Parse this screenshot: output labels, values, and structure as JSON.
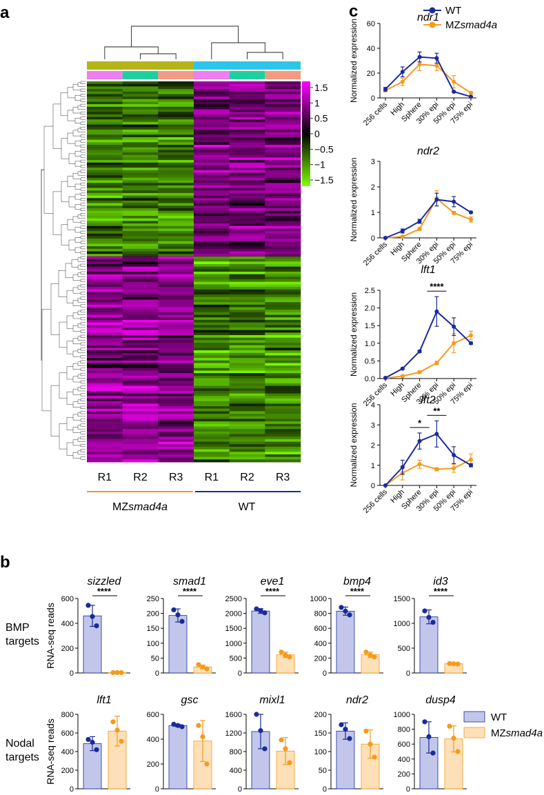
{
  "panel_labels": {
    "a": "a",
    "b": "b",
    "c": "c"
  },
  "colors": {
    "wt": "#1a2a9a",
    "mz": "#f59a1a",
    "wt_fill": "#c1c6ea",
    "mz_fill": "#fde0b8",
    "group_mz": "#b5b41a",
    "group_wt": "#2ec6e8",
    "rep1": "#f07ef0",
    "rep2": "#1ed0a0",
    "rep3": "#f59a82"
  },
  "legend": {
    "wt": "WT",
    "mz_prefix": "MZ",
    "mz_italic": "smad4a"
  },
  "heatmap": {
    "colorbar_ticks": [
      "1.5",
      "1",
      "0.5",
      "0",
      "−0.5",
      "−1",
      "−1.5"
    ],
    "columns": [
      "R1",
      "R2",
      "R3",
      "R1",
      "R2",
      "R3"
    ],
    "group_mz_prefix": "MZ",
    "group_mz_italic": "smad4a",
    "group_wt": "WT"
  },
  "panel_b": {
    "ylabel": "RNA-seq reads",
    "row_bmp_label": [
      "BMP",
      "targets"
    ],
    "row_nodal_label": [
      "Nodal",
      "targets"
    ]
  },
  "panel_c": {
    "ylabel": "Normalized expression"
  },
  "chart_data": [
    {
      "type": "line",
      "panel": "c",
      "gene": "ndr1",
      "x": [
        "256 cells",
        "High",
        "Sphere",
        "30% epi",
        "50% epi",
        "75% epi"
      ],
      "ylim": [
        0,
        60
      ],
      "yticks": [
        "0",
        "20",
        "40",
        "60"
      ],
      "series": [
        {
          "name": "WT",
          "values": [
            7,
            21,
            33,
            32,
            5,
            1
          ],
          "errors": [
            1.5,
            4,
            4,
            4,
            0.5,
            0.3
          ]
        },
        {
          "name": "MZsmad4a",
          "values": [
            6,
            13,
            27,
            26,
            13,
            4
          ],
          "errors": [
            1,
            3,
            5,
            4,
            5,
            1
          ]
        }
      ],
      "significance": []
    },
    {
      "type": "line",
      "panel": "c",
      "gene": "ndr2",
      "x": [
        "256 cells",
        "High",
        "Sphere",
        "30% epi",
        "50% epi",
        "75% epi"
      ],
      "ylim": [
        0,
        3
      ],
      "yticks": [
        "0",
        "1",
        "2",
        "3"
      ],
      "series": [
        {
          "name": "WT",
          "values": [
            0,
            0.27,
            0.65,
            1.5,
            1.42,
            1.0
          ],
          "errors": [
            0.02,
            0.08,
            0.08,
            0.25,
            0.2,
            0.03
          ]
        },
        {
          "name": "MZsmad4a",
          "values": [
            0,
            0.05,
            0.35,
            1.55,
            0.98,
            0.72
          ],
          "errors": [
            0.02,
            0.03,
            0.06,
            0.3,
            0.06,
            0.1
          ]
        }
      ],
      "significance": []
    },
    {
      "type": "line",
      "panel": "c",
      "gene": "lft1",
      "x": [
        "256 cells",
        "High",
        "Sphere",
        "30% epi",
        "50% epi",
        "75% epi"
      ],
      "ylim": [
        0,
        2.5
      ],
      "yticks": [
        "0.0",
        "0.5",
        "1.0",
        "1.5",
        "2.0",
        "2.5"
      ],
      "series": [
        {
          "name": "WT",
          "values": [
            0.02,
            0.28,
            0.77,
            1.9,
            1.47,
            1.0
          ],
          "errors": [
            0.01,
            0.02,
            0.03,
            0.42,
            0.25,
            0.03
          ]
        },
        {
          "name": "MZsmad4a",
          "values": [
            0.01,
            0.07,
            0.18,
            0.44,
            1.0,
            1.22
          ],
          "errors": [
            0.01,
            0.02,
            0.04,
            0.05,
            0.27,
            0.12
          ]
        }
      ],
      "significance": [
        {
          "from": 3,
          "to": 3,
          "label": "****"
        }
      ]
    },
    {
      "type": "line",
      "panel": "c",
      "gene": "lft2",
      "x": [
        "256 cells",
        "High",
        "Sphere",
        "30% epi",
        "50% epi",
        "75% epi"
      ],
      "ylim": [
        0,
        4
      ],
      "yticks": [
        "0",
        "1",
        "2",
        "3",
        "4"
      ],
      "series": [
        {
          "name": "WT",
          "values": [
            0,
            0.9,
            2.2,
            2.55,
            1.5,
            1.0
          ],
          "errors": [
            0.02,
            0.35,
            0.4,
            0.65,
            0.42,
            0.08
          ]
        },
        {
          "name": "MZsmad4a",
          "values": [
            0,
            0.62,
            1.05,
            0.8,
            0.85,
            1.28
          ],
          "errors": [
            0.02,
            0.35,
            0.2,
            0.08,
            0.2,
            0.28
          ]
        }
      ],
      "significance": [
        {
          "from": 2,
          "to": 2,
          "label": "*"
        },
        {
          "from": 3,
          "to": 3,
          "label": "**"
        }
      ]
    },
    {
      "type": "bar",
      "panel": "b",
      "row": "BMP",
      "gene": "sizzled",
      "categories": [
        "WT",
        "MZsmad4a"
      ],
      "values": [
        460,
        3
      ],
      "errors": [
        85,
        1
      ],
      "points": [
        [
          545,
          455,
          380
        ],
        [
          3,
          3,
          3
        ]
      ],
      "ylim": [
        0,
        600
      ],
      "yticks": [
        "0",
        "200",
        "400",
        "600"
      ],
      "significance": "****"
    },
    {
      "type": "bar",
      "panel": "b",
      "row": "BMP",
      "gene": "smad1",
      "categories": [
        "WT",
        "MZsmad4a"
      ],
      "values": [
        193,
        20
      ],
      "errors": [
        22,
        6
      ],
      "points": [
        [
          212,
          195,
          173
        ],
        [
          28,
          20,
          14
        ]
      ],
      "ylim": [
        0,
        250
      ],
      "yticks": [
        "0",
        "50",
        "100",
        "150",
        "200",
        "250"
      ],
      "significance": "****"
    },
    {
      "type": "bar",
      "panel": "b",
      "row": "BMP",
      "gene": "eve1",
      "categories": [
        "WT",
        "MZsmad4a"
      ],
      "values": [
        2080,
        610
      ],
      "errors": [
        80,
        90
      ],
      "points": [
        [
          2150,
          2090,
          2020
        ],
        [
          700,
          600,
          540
        ]
      ],
      "ylim": [
        0,
        2500
      ],
      "yticks": [
        "0",
        "500",
        "1000",
        "1500",
        "2000",
        "2500"
      ],
      "significance": "****"
    },
    {
      "type": "bar",
      "panel": "b",
      "row": "BMP",
      "gene": "bmp4",
      "categories": [
        "WT",
        "MZsmad4a"
      ],
      "values": [
        830,
        245
      ],
      "errors": [
        55,
        35
      ],
      "points": [
        [
          880,
          830,
          780
        ],
        [
          280,
          240,
          215
        ]
      ],
      "ylim": [
        0,
        1000
      ],
      "yticks": [
        "0",
        "200",
        "400",
        "600",
        "800",
        "1000"
      ],
      "significance": "****"
    },
    {
      "type": "bar",
      "panel": "b",
      "row": "BMP",
      "gene": "id3",
      "categories": [
        "WT",
        "MZsmad4a"
      ],
      "values": [
        1130,
        185
      ],
      "errors": [
        140,
        10
      ],
      "points": [
        [
          1250,
          1120,
          1020
        ],
        [
          190,
          185,
          180
        ]
      ],
      "ylim": [
        0,
        1500
      ],
      "yticks": [
        "0",
        "500",
        "1000",
        "1500"
      ],
      "significance": "****"
    },
    {
      "type": "bar",
      "panel": "b",
      "row": "Nodal",
      "gene": "lft1",
      "categories": [
        "WT",
        "MZsmad4a"
      ],
      "values": [
        485,
        620
      ],
      "errors": [
        75,
        160
      ],
      "points": [
        [
          530,
          500,
          420
        ],
        [
          720,
          630,
          510
        ]
      ],
      "ylim": [
        0,
        800
      ],
      "yticks": [
        "0",
        "200",
        "400",
        "600",
        "800"
      ],
      "significance": ""
    },
    {
      "type": "bar",
      "panel": "b",
      "row": "Nodal",
      "gene": "gsc",
      "categories": [
        "WT",
        "MZsmad4a"
      ],
      "values": [
        510,
        385
      ],
      "errors": [
        10,
        165
      ],
      "points": [
        [
          520,
          510,
          500
        ],
        [
          510,
          420,
          200
        ]
      ],
      "ylim": [
        0,
        600
      ],
      "yticks": [
        "0",
        "200",
        "400",
        "600"
      ],
      "significance": ""
    },
    {
      "type": "bar",
      "panel": "b",
      "row": "Nodal",
      "gene": "mixl1",
      "categories": [
        "WT",
        "MZsmad4a"
      ],
      "values": [
        1230,
        810
      ],
      "errors": [
        370,
        290
      ],
      "points": [
        [
          1600,
          1250,
          860
        ],
        [
          1050,
          860,
          560
        ]
      ],
      "ylim": [
        0,
        1600
      ],
      "yticks": [
        "0",
        "400",
        "800",
        "1200",
        "1600"
      ],
      "significance": ""
    },
    {
      "type": "bar",
      "panel": "b",
      "row": "Nodal",
      "gene": "ndr2",
      "categories": [
        "WT",
        "MZsmad4a"
      ],
      "values": [
        155,
        120
      ],
      "errors": [
        22,
        38
      ],
      "points": [
        [
          172,
          160,
          135
        ],
        [
          155,
          120,
          85
        ]
      ],
      "ylim": [
        0,
        200
      ],
      "yticks": [
        "0",
        "50",
        "100",
        "150",
        "200"
      ],
      "significance": ""
    },
    {
      "type": "bar",
      "panel": "b",
      "row": "Nodal",
      "gene": "dusp4",
      "categories": [
        "WT",
        "MZsmad4a"
      ],
      "values": [
        690,
        670
      ],
      "errors": [
        210,
        175
      ],
      "points": [
        [
          900,
          700,
          480
        ],
        [
          840,
          680,
          500
        ]
      ],
      "ylim": [
        0,
        1000
      ],
      "yticks": [
        "0",
        "200",
        "400",
        "600",
        "800",
        "1000"
      ],
      "significance": ""
    }
  ]
}
